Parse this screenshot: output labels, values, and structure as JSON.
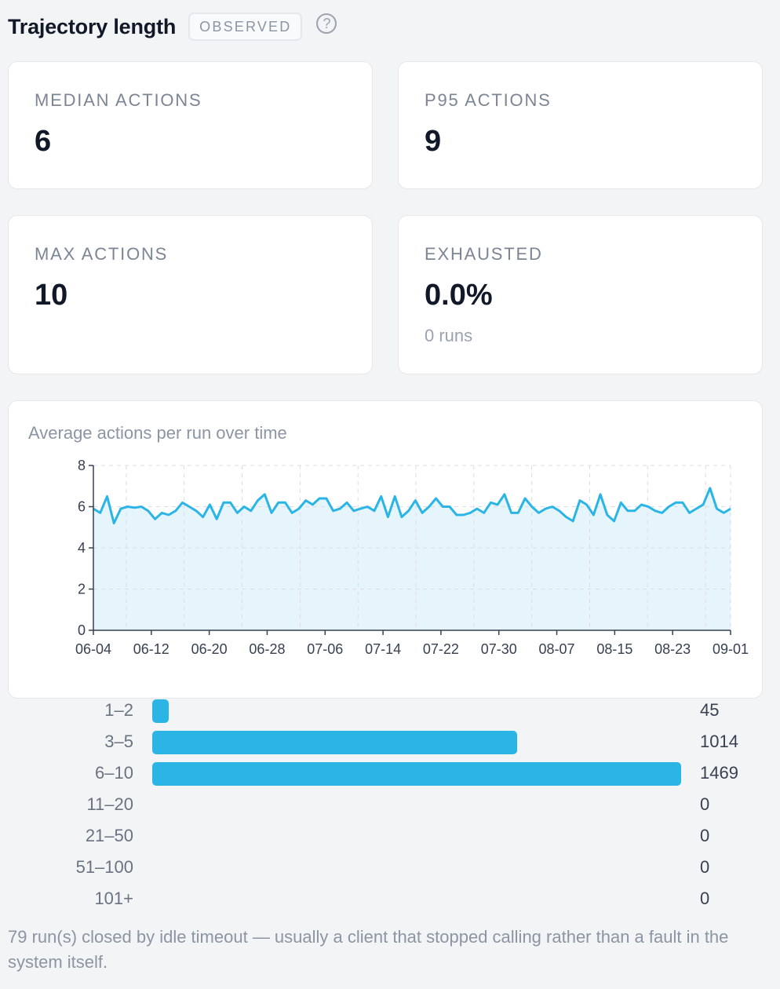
{
  "header": {
    "title": "Trajectory length",
    "badge": "OBSERVED",
    "help_icon": "question-circle-icon",
    "help_glyph": "?"
  },
  "stats": [
    {
      "label": "MEDIAN ACTIONS",
      "value": "6"
    },
    {
      "label": "P95 ACTIONS",
      "value": "9"
    },
    {
      "label": "MAX ACTIONS",
      "value": "10"
    },
    {
      "label": "EXHAUSTED",
      "value": "0.0%",
      "sub": "0 runs"
    }
  ],
  "chart_data": {
    "type": "area",
    "title": "Average actions per run over time",
    "xlabel": "",
    "ylabel": "",
    "ylim": [
      0,
      8
    ],
    "yticks": [
      "0",
      "2",
      "4",
      "6",
      "8"
    ],
    "xticks": [
      "06-04",
      "06-12",
      "06-20",
      "06-28",
      "07-06",
      "07-14",
      "07-22",
      "07-30",
      "08-07",
      "08-15",
      "08-23",
      "09-01"
    ],
    "grid": true,
    "line_color": "#2bb5e6",
    "fill_color": "#e6f5fc",
    "values": [
      5.9,
      5.7,
      6.5,
      5.2,
      5.9,
      6.0,
      5.95,
      6.0,
      5.8,
      5.4,
      5.7,
      5.6,
      5.8,
      6.2,
      6.0,
      5.8,
      5.5,
      6.1,
      5.4,
      6.2,
      6.2,
      5.7,
      6.0,
      5.8,
      6.3,
      6.6,
      5.7,
      6.2,
      6.2,
      5.7,
      5.9,
      6.3,
      6.1,
      6.4,
      6.4,
      5.8,
      5.9,
      6.2,
      5.8,
      5.9,
      6.0,
      5.8,
      6.5,
      5.5,
      6.5,
      5.5,
      5.8,
      6.3,
      5.7,
      6.0,
      6.4,
      6.0,
      6.0,
      5.6,
      5.6,
      5.7,
      5.9,
      5.7,
      6.2,
      6.1,
      6.6,
      5.7,
      5.7,
      6.4,
      6.0,
      5.7,
      5.9,
      6.0,
      5.8,
      5.5,
      5.3,
      6.3,
      6.1,
      5.6,
      6.6,
      5.6,
      5.3,
      6.2,
      5.8,
      5.8,
      6.1,
      6.0,
      5.8,
      5.7,
      6.0,
      6.2,
      6.2,
      5.7,
      5.9,
      6.1,
      6.9,
      5.9,
      5.7,
      5.9
    ]
  },
  "distribution": {
    "max": 1469,
    "color": "#2bb5e6",
    "buckets": [
      {
        "label": "1–2",
        "count": 45,
        "count_text": "45"
      },
      {
        "label": "3–5",
        "count": 1014,
        "count_text": "1014"
      },
      {
        "label": "6–10",
        "count": 1469,
        "count_text": "1469"
      },
      {
        "label": "11–20",
        "count": 0,
        "count_text": "0"
      },
      {
        "label": "21–50",
        "count": 0,
        "count_text": "0"
      },
      {
        "label": "51–100",
        "count": 0,
        "count_text": "0"
      },
      {
        "label": "101+",
        "count": 0,
        "count_text": "0"
      }
    ]
  },
  "footnote": "79 run(s) closed by idle timeout — usually a client that stopped calling rather than a fault in the system itself."
}
